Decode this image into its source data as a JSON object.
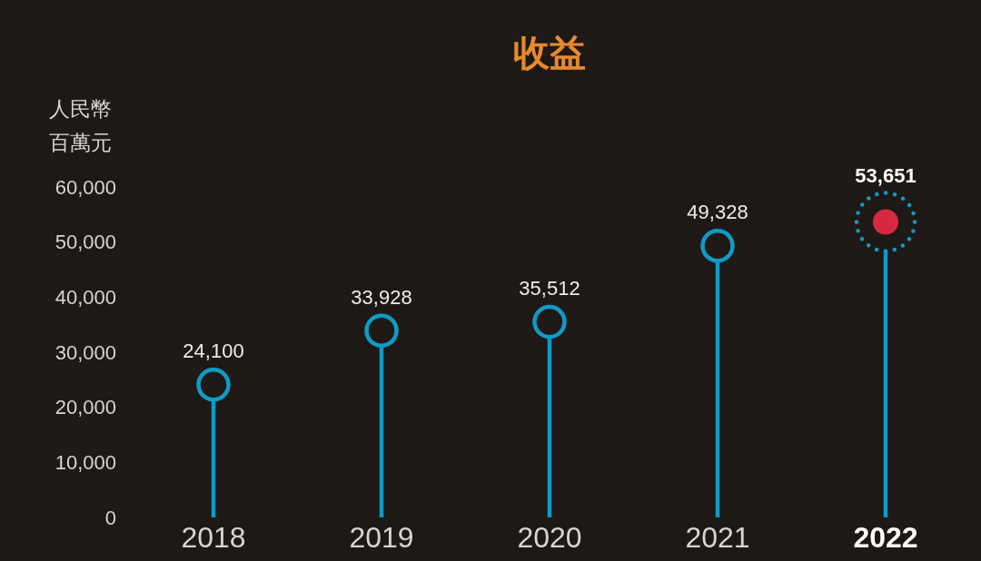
{
  "chart_data": {
    "type": "lollipop",
    "title": "收益",
    "ylabel": "人民幣百萬元",
    "categories": [
      "2018",
      "2019",
      "2020",
      "2021",
      "2022"
    ],
    "values": [
      24100,
      33928,
      35512,
      49328,
      53651
    ],
    "color": "#0e9bc6",
    "colors": [
      "#0e9bc6",
      "#0e9bc6",
      "#0e9bc6",
      "#0e9bc6",
      "#d8283f"
    ],
    "value_labels": [
      "24,100",
      "33,928",
      "35,512",
      "49,328",
      "53,651"
    ],
    "marker": "circle",
    "ylim": [
      0,
      60000
    ],
    "yticks": [
      0,
      {
        "value": 10000,
        "label": "10,000"
      },
      {
        "value": 20000,
        "label": "20,000"
      },
      {
        "value": 30000,
        "label": "30,000"
      },
      {
        "value": 40000,
        "label": "40,000"
      },
      {
        "value": 50000,
        "label": "50,000"
      },
      {
        "value": 60000,
        "label": "60,000"
      }
    ]
  }
}
